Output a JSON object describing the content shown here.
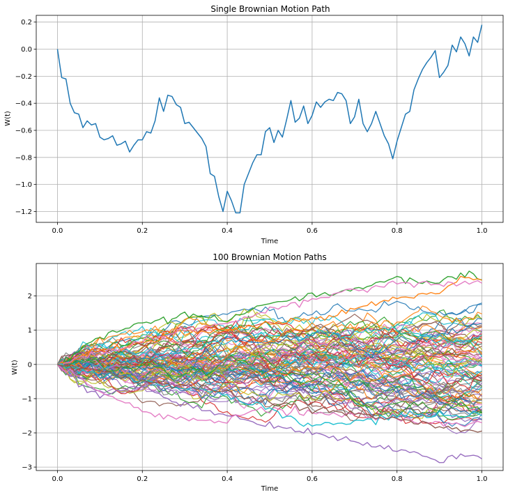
{
  "chart_data": [
    {
      "type": "line",
      "title": "Single Brownian Motion Path",
      "xlabel": "Time",
      "ylabel": "W(t)",
      "xlim": [
        -0.05,
        1.05
      ],
      "ylim": [
        -1.28,
        0.25
      ],
      "xticks": [
        0.0,
        0.2,
        0.4,
        0.6,
        0.8,
        1.0
      ],
      "xtick_labels": [
        "0.0",
        "0.2",
        "0.4",
        "0.6",
        "0.8",
        "1.0"
      ],
      "yticks": [
        0.2,
        0.0,
        -0.2,
        -0.4,
        -0.6,
        -0.8,
        -1.0,
        -1.2
      ],
      "ytick_labels": [
        "0.2",
        "0.0",
        "−0.2",
        "−0.4",
        "−0.6",
        "−0.8",
        "−1.0",
        "−1.2"
      ],
      "grid": true,
      "color": "#1f77b4",
      "series": [
        {
          "x": [
            0.0,
            0.01,
            0.02,
            0.03,
            0.04,
            0.05,
            0.06,
            0.07,
            0.08,
            0.09,
            0.1,
            0.11,
            0.12,
            0.13,
            0.14,
            0.15,
            0.16,
            0.17,
            0.18,
            0.19,
            0.2,
            0.21,
            0.22,
            0.23,
            0.24,
            0.25,
            0.26,
            0.27,
            0.28,
            0.29,
            0.3,
            0.31,
            0.32,
            0.33,
            0.34,
            0.35,
            0.36,
            0.37,
            0.38,
            0.39,
            0.4,
            0.41,
            0.42,
            0.43,
            0.44,
            0.45,
            0.46,
            0.47,
            0.48,
            0.49,
            0.5,
            0.51,
            0.52,
            0.53,
            0.54,
            0.55,
            0.56,
            0.57,
            0.58,
            0.59,
            0.6,
            0.61,
            0.62,
            0.63,
            0.64,
            0.65,
            0.66,
            0.67,
            0.68,
            0.69,
            0.7,
            0.71,
            0.72,
            0.73,
            0.74,
            0.75,
            0.76,
            0.77,
            0.78,
            0.79,
            0.8,
            0.81,
            0.82,
            0.83,
            0.84,
            0.85,
            0.86,
            0.87,
            0.88,
            0.89,
            0.9,
            0.91,
            0.92,
            0.93,
            0.94,
            0.95,
            0.96,
            0.97,
            0.98,
            0.99,
            1.0
          ],
          "y": [
            0.0,
            -0.21,
            -0.22,
            -0.4,
            -0.47,
            -0.48,
            -0.58,
            -0.53,
            -0.56,
            -0.55,
            -0.65,
            -0.67,
            -0.66,
            -0.64,
            -0.71,
            -0.7,
            -0.68,
            -0.76,
            -0.71,
            -0.67,
            -0.67,
            -0.61,
            -0.62,
            -0.53,
            -0.36,
            -0.46,
            -0.34,
            -0.35,
            -0.41,
            -0.43,
            -0.55,
            -0.54,
            -0.58,
            -0.62,
            -0.66,
            -0.72,
            -0.92,
            -0.94,
            -1.09,
            -1.2,
            -1.05,
            -1.12,
            -1.21,
            -1.21,
            -1.0,
            -0.92,
            -0.84,
            -0.78,
            -0.78,
            -0.61,
            -0.58,
            -0.69,
            -0.6,
            -0.65,
            -0.52,
            -0.38,
            -0.54,
            -0.51,
            -0.42,
            -0.55,
            -0.49,
            -0.39,
            -0.43,
            -0.39,
            -0.37,
            -0.38,
            -0.32,
            -0.33,
            -0.38,
            -0.55,
            -0.5,
            -0.37,
            -0.55,
            -0.61,
            -0.55,
            -0.46,
            -0.55,
            -0.64,
            -0.7,
            -0.81,
            -0.68,
            -0.58,
            -0.48,
            -0.46,
            -0.3,
            -0.22,
            -0.15,
            -0.1,
            -0.06,
            -0.01,
            -0.21,
            -0.17,
            -0.12,
            0.03,
            -0.02,
            0.09,
            0.04,
            -0.05,
            0.09,
            0.05,
            0.18
          ]
        }
      ]
    },
    {
      "type": "line",
      "title": "100 Brownian Motion Paths",
      "xlabel": "Time",
      "ylabel": "W(t)",
      "xlim": [
        -0.05,
        1.05
      ],
      "ylim": [
        -3.1,
        2.95
      ],
      "xticks": [
        0.0,
        0.2,
        0.4,
        0.6,
        0.8,
        1.0
      ],
      "xtick_labels": [
        "0.0",
        "0.2",
        "0.4",
        "0.6",
        "0.8",
        "1.0"
      ],
      "yticks": [
        2,
        1,
        0,
        -1,
        -2,
        -3
      ],
      "ytick_labels": [
        "2",
        "1",
        "0",
        "−1",
        "−2",
        "−3"
      ],
      "grid": true,
      "path_count": 100,
      "steps": 100,
      "palette": [
        "#1f77b4",
        "#ff7f0e",
        "#2ca02c",
        "#d62728",
        "#9467bd",
        "#8c564b",
        "#e377c2",
        "#7f7f7f",
        "#bcbd22",
        "#17becf"
      ],
      "highlighted_paths": [
        {
          "color": "#2ca02c",
          "x": [
            0.0,
            0.1,
            0.2,
            0.3,
            0.4,
            0.5,
            0.6,
            0.7,
            0.8,
            0.9,
            0.97,
            1.0
          ],
          "y": [
            0.0,
            0.8,
            1.2,
            1.4,
            1.3,
            1.8,
            2.0,
            2.2,
            2.55,
            2.35,
            2.7,
            2.55
          ]
        },
        {
          "color": "#ff7f0e",
          "x": [
            0.0,
            0.1,
            0.2,
            0.3,
            0.4,
            0.5,
            0.6,
            0.7,
            0.8,
            0.9,
            0.95,
            1.0
          ],
          "y": [
            0.0,
            0.4,
            0.6,
            0.9,
            1.0,
            1.2,
            1.3,
            1.6,
            2.0,
            2.1,
            2.55,
            2.5
          ]
        },
        {
          "color": "#e377c2",
          "x": [
            0.0,
            0.1,
            0.2,
            0.3,
            0.4,
            0.5,
            0.6,
            0.7,
            0.8,
            0.9,
            1.0
          ],
          "y": [
            0.0,
            0.3,
            0.7,
            1.0,
            1.2,
            1.6,
            1.9,
            2.2,
            2.4,
            2.3,
            2.4
          ]
        },
        {
          "color": "#9467bd",
          "x": [
            0.0,
            0.05,
            0.1,
            0.2,
            0.3,
            0.4,
            0.5,
            0.6,
            0.7,
            0.8,
            0.9,
            0.95,
            1.0
          ],
          "y": [
            0.0,
            -0.6,
            -0.9,
            -0.6,
            -1.2,
            -1.5,
            -1.8,
            -2.0,
            -2.3,
            -2.5,
            -2.8,
            -2.7,
            -2.7
          ]
        },
        {
          "color": "#e377c2",
          "x": [
            0.0,
            0.05,
            0.1,
            0.15,
            0.2,
            0.3,
            0.4,
            0.45,
            0.5,
            0.6,
            0.7,
            0.8,
            0.9,
            1.0
          ],
          "y": [
            0.0,
            -0.4,
            -0.8,
            -1.0,
            -1.4,
            -1.6,
            -1.7,
            -1.4,
            -1.3,
            -1.4,
            -1.5,
            -1.6,
            -1.7,
            -1.75
          ]
        },
        {
          "color": "#17becf",
          "x": [
            0.0,
            0.1,
            0.2,
            0.3,
            0.4,
            0.5,
            0.6,
            0.7,
            0.8,
            0.9,
            1.0
          ],
          "y": [
            0.0,
            -0.3,
            -0.5,
            -0.7,
            -0.9,
            -1.3,
            -1.8,
            -1.7,
            -1.5,
            -1.5,
            -1.5
          ]
        },
        {
          "color": "#8c564b",
          "x": [
            0.0,
            0.1,
            0.2,
            0.3,
            0.4,
            0.5,
            0.6,
            0.7,
            0.8,
            0.9,
            1.0
          ],
          "y": [
            0.0,
            -0.2,
            -0.5,
            -0.6,
            -0.8,
            -1.1,
            -1.3,
            -1.4,
            -1.6,
            -1.8,
            -1.95
          ]
        }
      ]
    }
  ]
}
